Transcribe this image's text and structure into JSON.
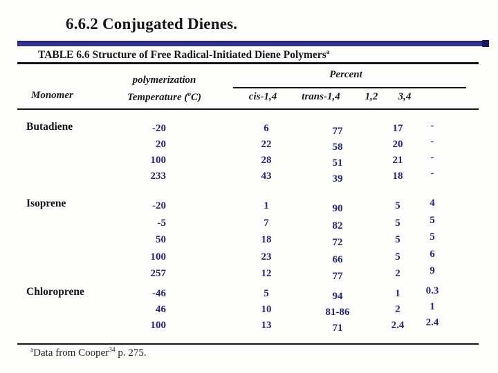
{
  "page": {
    "title": "6.6.2 Conjugated Dienes."
  },
  "colors": {
    "divider_bar": "#2e3192",
    "data_text": "#26267a",
    "label_text": "#141414"
  },
  "table": {
    "caption": "TABLE 6.6 Structure of Free Radical-Initiated Diene Polymers",
    "caption_sup": "a",
    "header": {
      "monomer": "Monomer",
      "temp_line1": "polymerization",
      "temp_line2_pre": "Temperature (",
      "temp_line2_sup": "o",
      "temp_line2_post": "C)",
      "percent_group": "Percent",
      "col_cis": "cis-1,4",
      "col_trans": "trans-1,4",
      "col_one2": "1,2",
      "col_three4": "3,4"
    },
    "sections": [
      {
        "monomer": "Butadiene",
        "temps": [
          "-20",
          "20",
          "100",
          "233"
        ],
        "cis": [
          "6",
          "22",
          "28",
          "43"
        ],
        "trans": [
          "77",
          "58",
          "51",
          "39"
        ],
        "one2": [
          "17",
          "20",
          "21",
          "18"
        ],
        "three4": [
          "-",
          "-",
          "-",
          "-"
        ]
      },
      {
        "monomer": "Isoprene",
        "temps": [
          "-20",
          "-5",
          "50",
          "100",
          "257"
        ],
        "cis": [
          "1",
          "7",
          "18",
          "23",
          "12"
        ],
        "trans": [
          "90",
          "82",
          "72",
          "66",
          "77"
        ],
        "one2": [
          "5",
          "5",
          "5",
          "5",
          "2"
        ],
        "three4": [
          "4",
          "5",
          "5",
          "6",
          "9"
        ]
      },
      {
        "monomer": "Chloroprene",
        "temps": [
          "-46",
          "46",
          "100"
        ],
        "cis": [
          "5",
          "10",
          "13"
        ],
        "trans": [
          "94",
          "81-86",
          "71"
        ],
        "one2": [
          "1",
          "2",
          "2.4"
        ],
        "three4": [
          "0.3",
          "1",
          "2.4"
        ]
      }
    ],
    "footnote": {
      "sup": "a",
      "body": "Data from Cooper",
      "ref_sup": "34",
      "tail": " p. 275."
    }
  }
}
